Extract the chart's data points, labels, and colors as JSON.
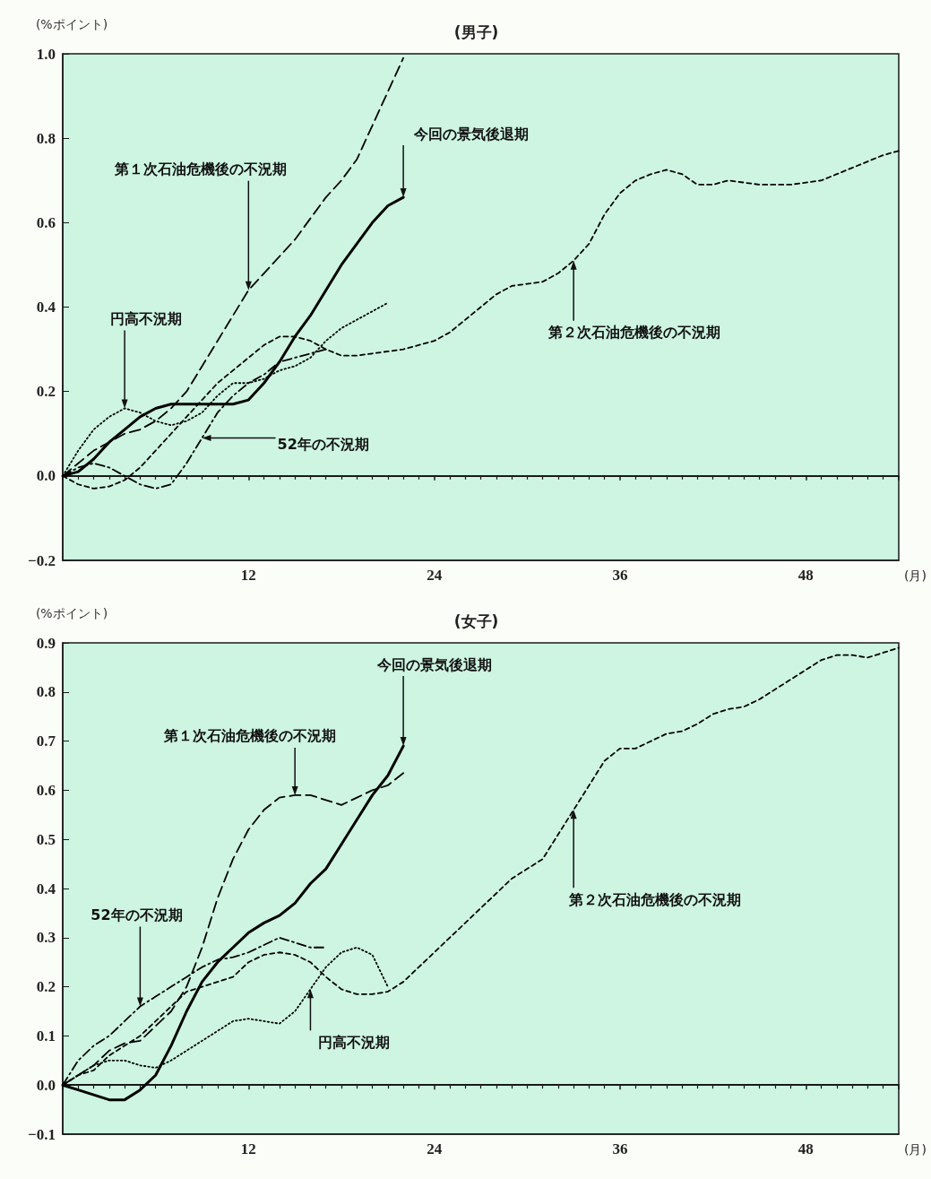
{
  "chart_data": [
    {
      "type": "line",
      "title": "(男子)",
      "ylabel": "(%ポイント)",
      "xlabel": "(月)",
      "xlim": [
        0,
        54
      ],
      "xticks": [
        12,
        24,
        36,
        48
      ],
      "ylim": [
        -0.2,
        1.0
      ],
      "yticks": [
        {
          "value": -0.2,
          "label": "−0.2"
        },
        {
          "value": 0,
          "label": "0.0"
        },
        {
          "value": 0.2,
          "label": "0.2"
        },
        {
          "value": 0.4,
          "label": "0.4"
        },
        {
          "value": 0.6,
          "label": "0.6"
        },
        {
          "value": 0.8,
          "label": "0.8"
        },
        {
          "value": 1.0,
          "label": "1.0"
        }
      ],
      "series": [
        {
          "color": "#000000",
          "line_style": "solid",
          "x": [
            0,
            1,
            2,
            3,
            4,
            5,
            6,
            7,
            8,
            9,
            10,
            11,
            12,
            13,
            14,
            15,
            16,
            17,
            18,
            19,
            20,
            21,
            22
          ],
          "values": [
            0,
            0.01,
            0.04,
            0.08,
            0.11,
            0.14,
            0.16,
            0.17,
            0.17,
            0.17,
            0.17,
            0.17,
            0.18,
            0.22,
            0.27,
            0.33,
            0.38,
            0.44,
            0.5,
            0.55,
            0.6,
            0.64,
            0.66
          ]
        },
        {
          "color": "#000000",
          "line_style": "dashed",
          "x": [
            0,
            1,
            2,
            3,
            4,
            5,
            6,
            7,
            8,
            9,
            10,
            11,
            12,
            13,
            14,
            15,
            16,
            17,
            18,
            19,
            20,
            21,
            22
          ],
          "values": [
            0,
            0.03,
            0.06,
            0.08,
            0.1,
            0.11,
            0.13,
            0.16,
            0.2,
            0.26,
            0.32,
            0.38,
            0.44,
            0.48,
            0.52,
            0.56,
            0.61,
            0.66,
            0.7,
            0.75,
            0.83,
            0.91,
            0.99
          ]
        },
        {
          "color": "#000000",
          "line_style": "shortdash",
          "x": [
            0,
            1,
            2,
            3,
            4,
            5,
            6,
            7,
            8,
            9,
            10,
            11,
            12,
            13,
            14,
            15,
            16,
            17,
            18,
            19,
            20,
            21,
            22,
            23,
            24,
            25,
            26,
            27,
            28,
            29,
            30,
            31,
            32,
            33,
            34,
            35,
            36,
            37,
            38,
            39,
            40,
            41,
            42,
            43,
            44,
            45,
            46,
            47,
            48,
            49,
            50,
            51,
            52,
            53,
            54
          ],
          "values": [
            0,
            -0.02,
            -0.03,
            -0.025,
            -0.01,
            0.02,
            0.06,
            0.1,
            0.14,
            0.18,
            0.22,
            0.25,
            0.28,
            0.31,
            0.33,
            0.33,
            0.32,
            0.3,
            0.285,
            0.285,
            0.29,
            0.295,
            0.3,
            0.31,
            0.32,
            0.34,
            0.37,
            0.4,
            0.43,
            0.45,
            0.455,
            0.46,
            0.48,
            0.51,
            0.55,
            0.62,
            0.67,
            0.7,
            0.715,
            0.725,
            0.715,
            0.69,
            0.69,
            0.7,
            0.695,
            0.69,
            0.69,
            0.69,
            0.695,
            0.7,
            0.715,
            0.73,
            0.745,
            0.76,
            0.77
          ]
        },
        {
          "color": "#000000",
          "line_style": "dashdot",
          "x": [
            0,
            1,
            2,
            3,
            4,
            5,
            6,
            7,
            8,
            9,
            10,
            11,
            12,
            13,
            14,
            15,
            16,
            17
          ],
          "values": [
            0,
            0.02,
            0.03,
            0.02,
            0,
            -0.02,
            -0.03,
            -0.02,
            0.03,
            0.09,
            0.15,
            0.19,
            0.22,
            0.24,
            0.27,
            0.28,
            0.29,
            0.3
          ]
        },
        {
          "color": "#000000",
          "line_style": "dotted",
          "x": [
            0,
            1,
            2,
            3,
            4,
            5,
            6,
            7,
            8,
            9,
            10,
            11,
            12,
            13,
            14,
            15,
            16,
            17,
            18,
            19,
            20,
            21
          ],
          "values": [
            0,
            0.06,
            0.11,
            0.14,
            0.16,
            0.15,
            0.13,
            0.12,
            0.13,
            0.15,
            0.19,
            0.22,
            0.22,
            0.23,
            0.25,
            0.26,
            0.28,
            0.32,
            0.35,
            0.37,
            0.39,
            0.41
          ]
        }
      ],
      "annotations": [
        {
          "text": "今回の景気後退期",
          "x": 22,
          "y": 0.66
        },
        {
          "text": "第１次石油危機後の不況期",
          "x": 12,
          "y": 0.44
        },
        {
          "text": "円高不況期",
          "x": 4,
          "y": 0.16
        },
        {
          "text": "52年の不況期",
          "x": 9,
          "y": 0.09
        },
        {
          "text": "第２次石油危機後の不況期",
          "x": 33,
          "y": 0.51
        }
      ]
    },
    {
      "type": "line",
      "title": "(女子)",
      "ylabel": "(%ポイント)",
      "xlabel": "(月)",
      "xlim": [
        0,
        54
      ],
      "xticks": [
        12,
        24,
        36,
        48
      ],
      "ylim": [
        -0.1,
        0.9
      ],
      "yticks": [
        {
          "value": -0.1,
          "label": "−0.1"
        },
        {
          "value": 0,
          "label": "0.0"
        },
        {
          "value": 0.1,
          "label": "0.1"
        },
        {
          "value": 0.2,
          "label": "0.2"
        },
        {
          "value": 0.3,
          "label": "0.3"
        },
        {
          "value": 0.4,
          "label": "0.4"
        },
        {
          "value": 0.5,
          "label": "0.5"
        },
        {
          "value": 0.6,
          "label": "0.6"
        },
        {
          "value": 0.7,
          "label": "0.7"
        },
        {
          "value": 0.8,
          "label": "0.8"
        },
        {
          "value": 0.9,
          "label": "0.9"
        }
      ],
      "series": [
        {
          "color": "#000000",
          "line_style": "solid",
          "x": [
            0,
            1,
            2,
            3,
            4,
            5,
            6,
            7,
            8,
            9,
            10,
            11,
            12,
            13,
            14,
            15,
            16,
            17,
            18,
            19,
            20,
            21,
            22
          ],
          "values": [
            0,
            -0.01,
            -0.02,
            -0.03,
            -0.03,
            -0.01,
            0.02,
            0.08,
            0.15,
            0.21,
            0.25,
            0.28,
            0.31,
            0.33,
            0.345,
            0.37,
            0.41,
            0.44,
            0.49,
            0.54,
            0.59,
            0.63,
            0.69
          ]
        },
        {
          "color": "#000000",
          "line_style": "dashed",
          "x": [
            0,
            1,
            2,
            3,
            4,
            5,
            6,
            7,
            8,
            9,
            10,
            11,
            12,
            13,
            14,
            15,
            16,
            17,
            18,
            19,
            20,
            21,
            22
          ],
          "values": [
            0,
            0.02,
            0.04,
            0.07,
            0.085,
            0.09,
            0.12,
            0.15,
            0.2,
            0.28,
            0.38,
            0.46,
            0.52,
            0.56,
            0.585,
            0.59,
            0.59,
            0.58,
            0.57,
            0.585,
            0.6,
            0.61,
            0.635
          ]
        },
        {
          "color": "#000000",
          "line_style": "shortdash",
          "x": [
            0,
            1,
            2,
            3,
            4,
            5,
            6,
            7,
            8,
            9,
            10,
            11,
            12,
            13,
            14,
            15,
            16,
            17,
            18,
            19,
            20,
            21,
            22,
            23,
            24,
            25,
            26,
            27,
            28,
            29,
            30,
            31,
            32,
            33,
            34,
            35,
            36,
            37,
            38,
            39,
            40,
            41,
            42,
            43,
            44,
            45,
            46,
            47,
            48,
            49,
            50,
            51,
            52,
            53,
            54
          ],
          "values": [
            0,
            0.02,
            0.03,
            0.06,
            0.08,
            0.1,
            0.13,
            0.16,
            0.19,
            0.2,
            0.21,
            0.22,
            0.25,
            0.265,
            0.27,
            0.265,
            0.25,
            0.22,
            0.195,
            0.185,
            0.185,
            0.19,
            0.21,
            0.24,
            0.27,
            0.3,
            0.33,
            0.36,
            0.39,
            0.42,
            0.44,
            0.46,
            0.51,
            0.56,
            0.61,
            0.66,
            0.685,
            0.685,
            0.7,
            0.715,
            0.72,
            0.735,
            0.755,
            0.765,
            0.77,
            0.785,
            0.805,
            0.825,
            0.845,
            0.865,
            0.875,
            0.875,
            0.87,
            0.88,
            0.89
          ]
        },
        {
          "color": "#000000",
          "line_style": "dashdot",
          "x": [
            0,
            1,
            2,
            3,
            4,
            5,
            6,
            7,
            8,
            9,
            10,
            11,
            12,
            13,
            14,
            15,
            16,
            17
          ],
          "values": [
            0,
            0.05,
            0.08,
            0.1,
            0.13,
            0.16,
            0.18,
            0.2,
            0.22,
            0.24,
            0.255,
            0.26,
            0.27,
            0.285,
            0.3,
            0.29,
            0.28,
            0.28
          ]
        },
        {
          "color": "#000000",
          "line_style": "dotted",
          "x": [
            0,
            1,
            2,
            3,
            4,
            5,
            6,
            7,
            8,
            9,
            10,
            11,
            12,
            13,
            14,
            15,
            16,
            17,
            18,
            19,
            20,
            21
          ],
          "values": [
            0,
            0.02,
            0.04,
            0.05,
            0.05,
            0.04,
            0.035,
            0.05,
            0.07,
            0.09,
            0.11,
            0.13,
            0.135,
            0.13,
            0.125,
            0.15,
            0.195,
            0.24,
            0.27,
            0.28,
            0.265,
            0.2
          ]
        }
      ],
      "annotations": [
        {
          "text": "今回の景気後退期",
          "x": 22,
          "y": 0.69
        },
        {
          "text": "第１次石油危機後の不況期",
          "x": 15,
          "y": 0.59
        },
        {
          "text": "52年の不況期",
          "x": 5,
          "y": 0.16
        },
        {
          "text": "円高不況期",
          "x": 16,
          "y": 0.195
        },
        {
          "text": "第２次石油危機後の不況期",
          "x": 33,
          "y": 0.56
        }
      ]
    }
  ]
}
